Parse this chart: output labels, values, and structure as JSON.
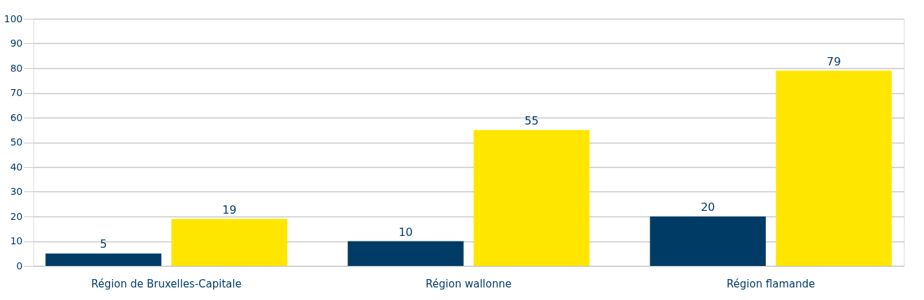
{
  "chart_data": {
    "type": "bar",
    "categories": [
      "Région de Bruxelles-Capitale",
      "Région wallonne",
      "Région flamande"
    ],
    "series": [
      {
        "color": "#003b66",
        "values": [
          5,
          10,
          20
        ]
      },
      {
        "color": "#ffe600",
        "values": [
          19,
          55,
          79
        ]
      }
    ],
    "ylim": [
      0,
      100
    ],
    "yticks": [
      0,
      10,
      20,
      30,
      40,
      50,
      60,
      70,
      80,
      90,
      100
    ],
    "grid": "y",
    "data_labels": true
  }
}
